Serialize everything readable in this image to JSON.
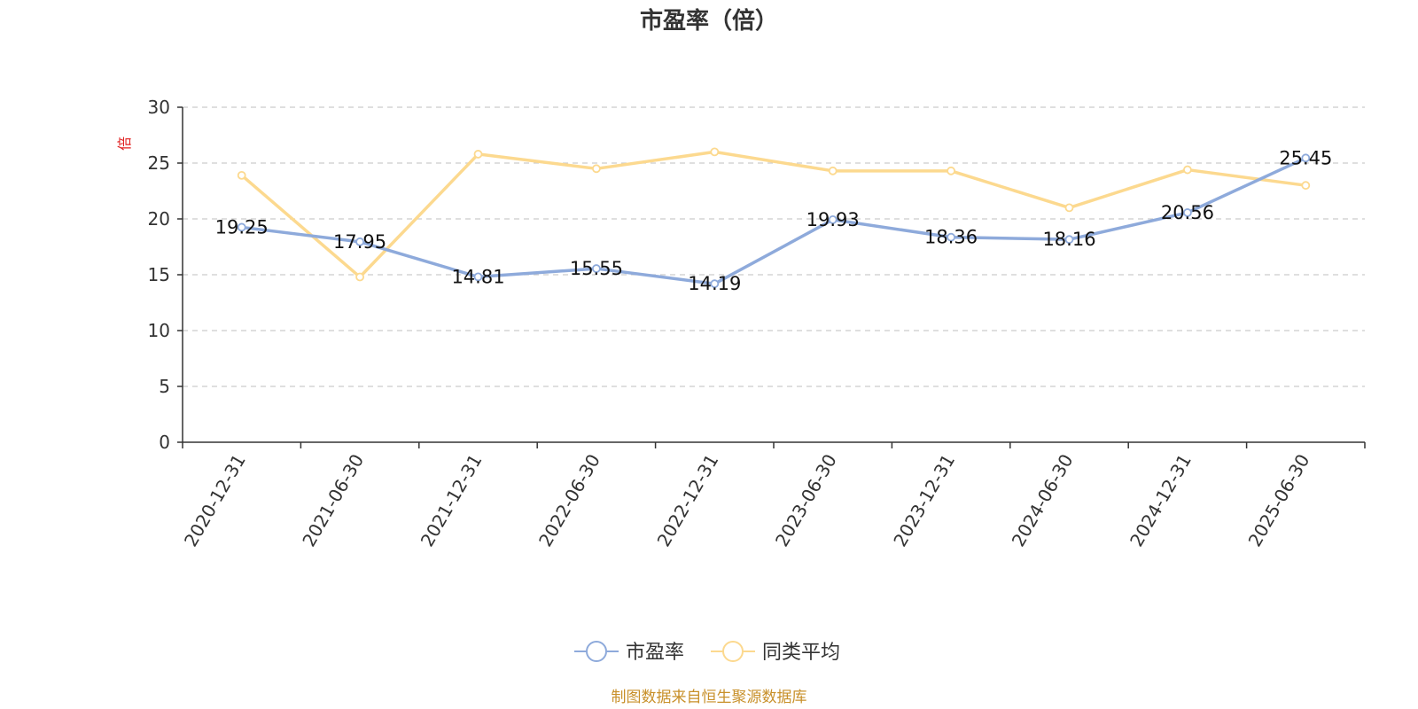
{
  "chart_data": {
    "type": "line",
    "title": "市盈率（倍）",
    "ylabel": "倍",
    "xlabel": "",
    "ylim": [
      0,
      30
    ],
    "yticks": [
      0,
      5,
      10,
      15,
      20,
      25,
      30
    ],
    "grid": true,
    "legend_position": "bottom",
    "categories": [
      "2020-12-31",
      "2021-06-30",
      "2021-12-31",
      "2022-06-30",
      "2022-12-31",
      "2023-06-30",
      "2023-12-31",
      "2024-06-30",
      "2024-12-31",
      "2025-06-30"
    ],
    "series": [
      {
        "name": "市盈率",
        "values": [
          19.25,
          17.95,
          14.81,
          15.55,
          14.19,
          19.93,
          18.36,
          18.16,
          20.56,
          25.45
        ],
        "labels": [
          "19.25",
          "17.95",
          "14.81",
          "15.55",
          "14.19",
          "19.93",
          "18.36",
          "18.16",
          "20.56",
          "25.45"
        ],
        "color": "#8eaadb"
      },
      {
        "name": "同类平均",
        "values": [
          23.9,
          14.8,
          25.8,
          24.5,
          26.0,
          24.3,
          24.3,
          21.0,
          24.4,
          23.0
        ],
        "color": "#fcd98f"
      }
    ]
  },
  "colors": {
    "axis": "#333333",
    "grid": "#cccccc",
    "unit_label": "#e02020",
    "footer": "#c8902a"
  },
  "footer": "制图数据来自恒生聚源数据库"
}
